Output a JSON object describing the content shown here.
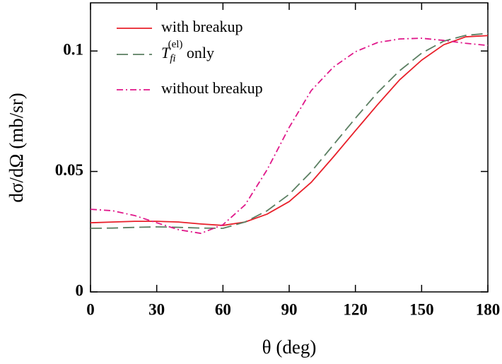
{
  "chart_data": {
    "type": "line",
    "xlabel": "θ (deg)",
    "ylabel": "dσ/dΩ (mb/sr)",
    "x": [
      0,
      10,
      20,
      30,
      40,
      50,
      60,
      70,
      80,
      90,
      100,
      110,
      120,
      130,
      140,
      150,
      160,
      170,
      180
    ],
    "series": [
      {
        "name": "with breakup",
        "color": "#e8202a",
        "linestyle": "solid",
        "values": [
          0.0287,
          0.029,
          0.0293,
          0.0293,
          0.029,
          0.0282,
          0.0276,
          0.029,
          0.0323,
          0.0375,
          0.0455,
          0.056,
          0.0669,
          0.0777,
          0.088,
          0.0962,
          0.1026,
          0.1059,
          0.1064
        ]
      },
      {
        "name": "Tfi(el) only",
        "color": "#5b7f62",
        "linestyle": "dashed",
        "values": [
          0.0264,
          0.0265,
          0.0268,
          0.027,
          0.0268,
          0.0265,
          0.0264,
          0.029,
          0.0337,
          0.0405,
          0.0499,
          0.061,
          0.0721,
          0.0827,
          0.0918,
          0.0991,
          0.1041,
          0.1065,
          0.1073
        ]
      },
      {
        "name": "without breakup",
        "color": "#e0188a",
        "linestyle": "dashdot",
        "values": [
          0.0343,
          0.0337,
          0.0317,
          0.0287,
          0.0258,
          0.0243,
          0.0279,
          0.0361,
          0.0507,
          0.0683,
          0.0836,
          0.0933,
          0.0997,
          0.1035,
          0.105,
          0.1053,
          0.1044,
          0.1032,
          0.1023
        ]
      }
    ],
    "xlim": [
      0,
      180
    ],
    "xticks": [
      0,
      30,
      60,
      90,
      120,
      150,
      180
    ],
    "ylim": [
      0,
      0.12
    ],
    "yticks": [
      0,
      0.05,
      0.1
    ],
    "legend": "upper-left"
  }
}
